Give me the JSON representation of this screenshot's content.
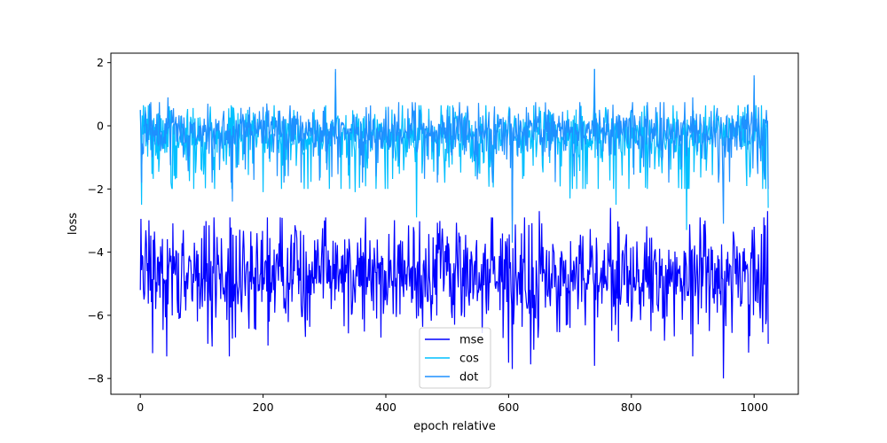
{
  "chart_data": {
    "type": "line",
    "title": "",
    "xlabel": "epoch relative",
    "ylabel": "loss",
    "xlim": [
      -48,
      1072
    ],
    "ylim": [
      -8.5,
      2.3
    ],
    "xticks": [
      0,
      200,
      400,
      600,
      800,
      1000
    ],
    "yticks": [
      -8,
      -6,
      -4,
      -2,
      0,
      2
    ],
    "grid": false,
    "legend_position": "lower-center",
    "n_points": 1024,
    "series": [
      {
        "name": "mse",
        "color": "#0000ff",
        "x": [
          0,
          3,
          6,
          20,
          43,
          70,
          110,
          145,
          190,
          210,
          260,
          300,
          350,
          400,
          450,
          500,
          550,
          600,
          606,
          650,
          700,
          740,
          766,
          800,
          850,
          900,
          950,
          1000,
          1022,
          1024
        ],
        "y": [
          -5.2,
          -4.1,
          -5.5,
          -7.2,
          -7.3,
          -3.3,
          -6.9,
          -7.3,
          -3.4,
          -6.2,
          -4.9,
          -3.0,
          -5.6,
          -4.6,
          -6.1,
          -3.5,
          -5.2,
          -7.5,
          -7.7,
          -2.7,
          -6.4,
          -7.6,
          -2.6,
          -6.2,
          -4.2,
          -7.3,
          -8.0,
          -3.2,
          -2.7,
          -6.9
        ]
      },
      {
        "name": "cos",
        "color": "#00bfff",
        "x": [
          0,
          2,
          8,
          50,
          100,
          150,
          200,
          250,
          300,
          318,
          350,
          400,
          450,
          500,
          550,
          600,
          606,
          650,
          700,
          740,
          775,
          800,
          850,
          890,
          950,
          1000,
          1024
        ],
        "y": [
          0.5,
          -2.5,
          0.6,
          -1.8,
          -1.4,
          0.6,
          -2.1,
          0.5,
          -0.3,
          1.7,
          -2.1,
          0.6,
          -2.9,
          0.5,
          -1.5,
          0.4,
          -3.0,
          0.6,
          -2.3,
          1.8,
          -2.5,
          0.5,
          -1.5,
          -3.3,
          0.1,
          1.5,
          -2.6
        ]
      },
      {
        "name": "dot",
        "color": "#1e90ff",
        "x": [
          0,
          10,
          45,
          70,
          110,
          150,
          200,
          250,
          300,
          318,
          350,
          400,
          450,
          500,
          550,
          600,
          606,
          640,
          690,
          740,
          760,
          800,
          850,
          900,
          950,
          1000,
          1024
        ],
        "y": [
          0.5,
          -0.5,
          0.9,
          -1.0,
          0.7,
          -2.4,
          0.6,
          -0.6,
          0.6,
          1.8,
          -0.5,
          0.5,
          -0.8,
          0.5,
          -1.0,
          0.3,
          -3.7,
          -0.3,
          -0.8,
          1.8,
          -0.3,
          0.5,
          -1.1,
          0.9,
          -3.1,
          1.6,
          -2.0
        ]
      }
    ]
  }
}
